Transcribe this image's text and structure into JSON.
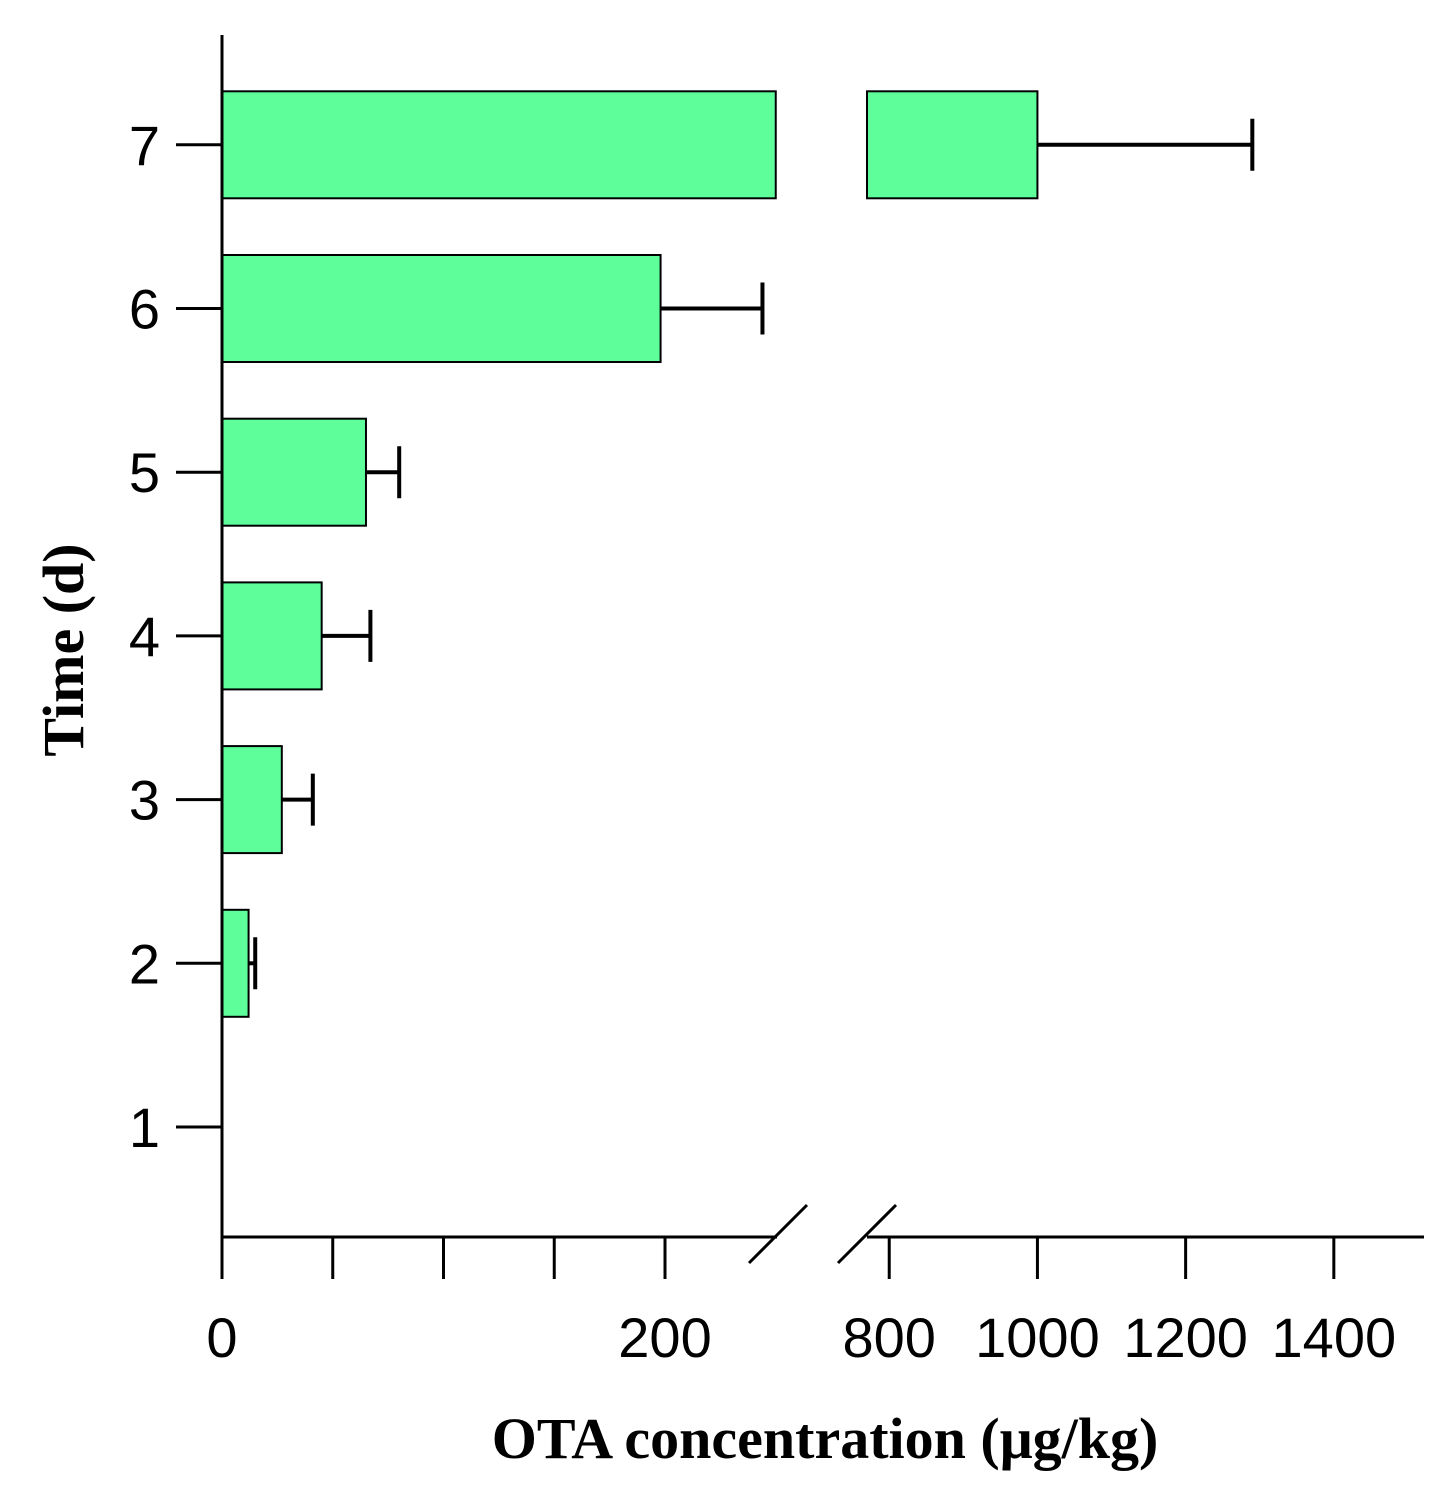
{
  "chart_data": {
    "type": "bar",
    "orientation": "horizontal",
    "xlabel": "OTA concentration (μg/kg)",
    "ylabel": "Time (d)",
    "x_axis_break": [
      250,
      770
    ],
    "x_ticks": [
      0,
      50,
      100,
      150,
      200,
      800,
      1000,
      1200,
      1400
    ],
    "x_tick_labels": [
      "0",
      "",
      "",
      "",
      "200",
      "800",
      "1000",
      "1200",
      "1400"
    ],
    "bar_color": "#5eff9a",
    "categories": [
      "1",
      "2",
      "3",
      "4",
      "5",
      "6",
      "7"
    ],
    "values": [
      0,
      12,
      27,
      45,
      65,
      198,
      1000
    ],
    "errors": [
      0,
      3,
      14,
      22,
      15,
      46,
      290
    ]
  }
}
